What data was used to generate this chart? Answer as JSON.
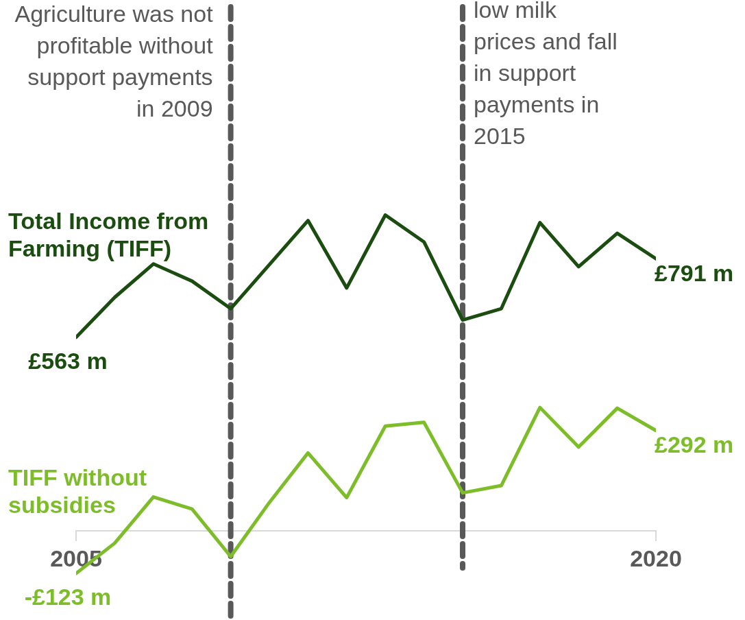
{
  "chart_data": {
    "type": "line",
    "x": [
      2005,
      2006,
      2007,
      2008,
      2009,
      2010,
      2011,
      2012,
      2013,
      2014,
      2015,
      2016,
      2017,
      2018,
      2019,
      2020
    ],
    "xlim": [
      2005,
      2020
    ],
    "xticks": [
      2005,
      2020
    ],
    "tick_labels": "x",
    "grid": false,
    "legend": false,
    "series": [
      {
        "name": "Total Income from Farming (TIFF)",
        "color": "#1a4d0f",
        "values": [
          563,
          679,
          776,
          726,
          646,
          774,
          902,
          706,
          918,
          840,
          613,
          646,
          896,
          768,
          865,
          791
        ],
        "value_labels": [
          "£563 m",
          null,
          null,
          null,
          null,
          null,
          null,
          null,
          null,
          null,
          null,
          null,
          null,
          null,
          null,
          "£791 m"
        ]
      },
      {
        "name": "TIFF without subsidies",
        "color": "#7ebd2a",
        "values": [
          -123,
          -35,
          99,
          64,
          -74,
          83,
          227,
          97,
          305,
          316,
          111,
          132,
          359,
          244,
          357,
          292
        ],
        "value_labels": [
          "-£123 m",
          null,
          null,
          null,
          null,
          null,
          null,
          null,
          null,
          null,
          null,
          null,
          null,
          null,
          null,
          "£292 m"
        ]
      }
    ],
    "ref_lines": [
      {
        "axis": "x",
        "value": 2009,
        "label": "Agriculture was not profitable without support payments in 2009",
        "color": "#595959",
        "line_style": "dashed"
      },
      {
        "axis": "x",
        "value": 2015,
        "label": "low milk prices and fall in support payments in 2015",
        "color": "#595959",
        "line_style": "dashed"
      }
    ]
  }
}
